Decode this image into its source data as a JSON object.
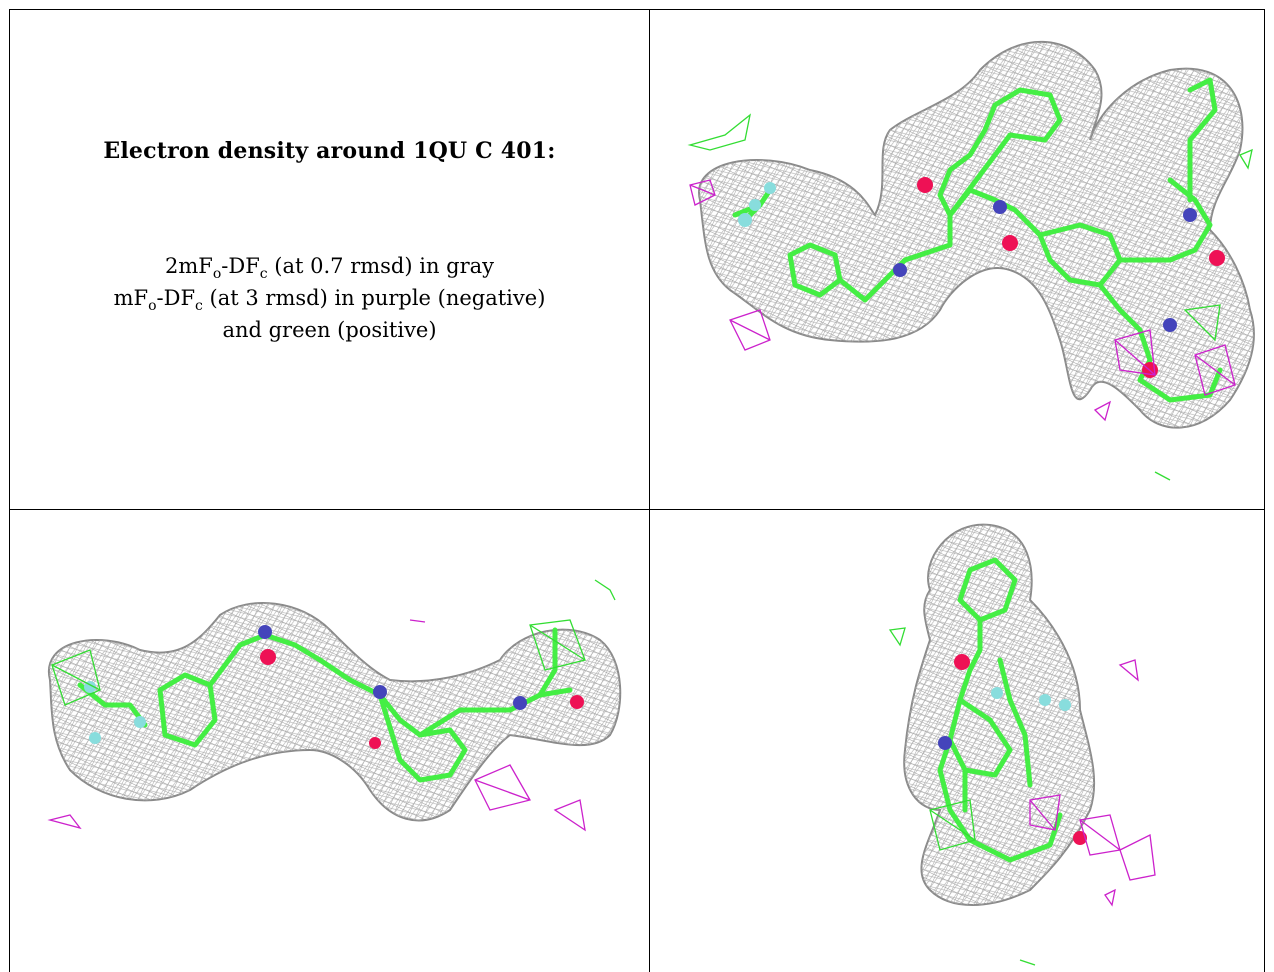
{
  "caption": {
    "title": "Electron density around 1QU C 401:",
    "line1": {
      "a": "2mF",
      "a_sub": "o",
      "b": "-DF",
      "b_sub": "c",
      "rest": " (at 0.7 rmsd) in gray"
    },
    "line2": {
      "a": "mF",
      "a_sub": "o",
      "b": "-DF",
      "b_sub": "c",
      "rest": " (at 3 rmsd) in purple (negative)"
    },
    "line3": "and green (positive)"
  },
  "colors": {
    "mesh_2fofc": "#9a9a9a",
    "mesh_negative": "#cc22cc",
    "mesh_positive": "#33dd33",
    "carbon": "#44ee44",
    "oxygen": "#ee1155",
    "nitrogen": "#4444bb",
    "fluorine": "#88dddd"
  },
  "views": [
    {
      "id": "view-top-right",
      "label": ""
    },
    {
      "id": "view-bottom-left",
      "label": ""
    },
    {
      "id": "view-bottom-right",
      "label": ""
    }
  ]
}
